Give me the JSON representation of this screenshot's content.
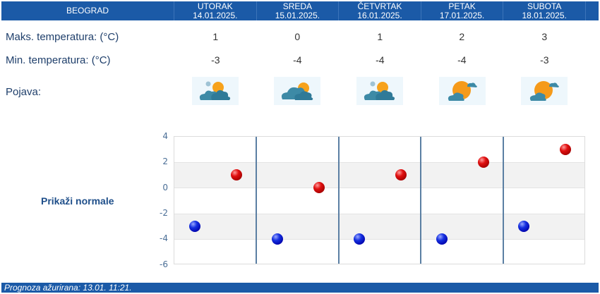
{
  "header": {
    "city": "BEOGRAD",
    "days": [
      {
        "name": "UTORAK",
        "date": "14.01.2025."
      },
      {
        "name": "SREDA",
        "date": "15.01.2025."
      },
      {
        "name": "ČETVRTAK",
        "date": "16.01.2025."
      },
      {
        "name": "PETAK",
        "date": "17.01.2025."
      },
      {
        "name": "SUBOTA",
        "date": "18.01.2025."
      }
    ]
  },
  "rows": {
    "max_label": "Maks. temperatura: (°C)",
    "min_label": "Min. temperatura: (°C)",
    "phenomenon_label": "Pojava:",
    "max": [
      "1",
      "0",
      "1",
      "2",
      "3"
    ],
    "min": [
      "-3",
      "-4",
      "-4",
      "-4",
      "-3"
    ],
    "icons": [
      "partly-cloudy-icon",
      "cloudy-with-sun-icon",
      "partly-cloudy-icon",
      "mostly-sunny-icon",
      "mostly-sunny-icon"
    ]
  },
  "normals_link": "Prikaži normale",
  "footer": "Prognoza ažurirana:  13.01. 11:21.",
  "colors": {
    "header_bg": "#1b5aa7",
    "max_dot": "#d00000",
    "min_dot": "#0000c0",
    "label": "#1f3f6b"
  },
  "chart_data": {
    "type": "scatter",
    "title": "",
    "xlabel": "",
    "ylabel": "",
    "categories": [
      "UTORAK 14.01.2025.",
      "SREDA 15.01.2025.",
      "ČETVRTAK 16.01.2025.",
      "PETAK 17.01.2025.",
      "SUBOTA 18.01.2025."
    ],
    "series": [
      {
        "name": "Maks. temperatura",
        "color": "#d00000",
        "values": [
          1,
          0,
          1,
          2,
          3
        ]
      },
      {
        "name": "Min. temperatura",
        "color": "#0000c0",
        "values": [
          -3,
          -4,
          -4,
          -4,
          -3
        ]
      }
    ],
    "yticks": [
      "4",
      "2",
      "0",
      "-2",
      "-4",
      "-6"
    ],
    "ylim": [
      -6,
      4
    ],
    "grid": true,
    "legend": "none"
  }
}
